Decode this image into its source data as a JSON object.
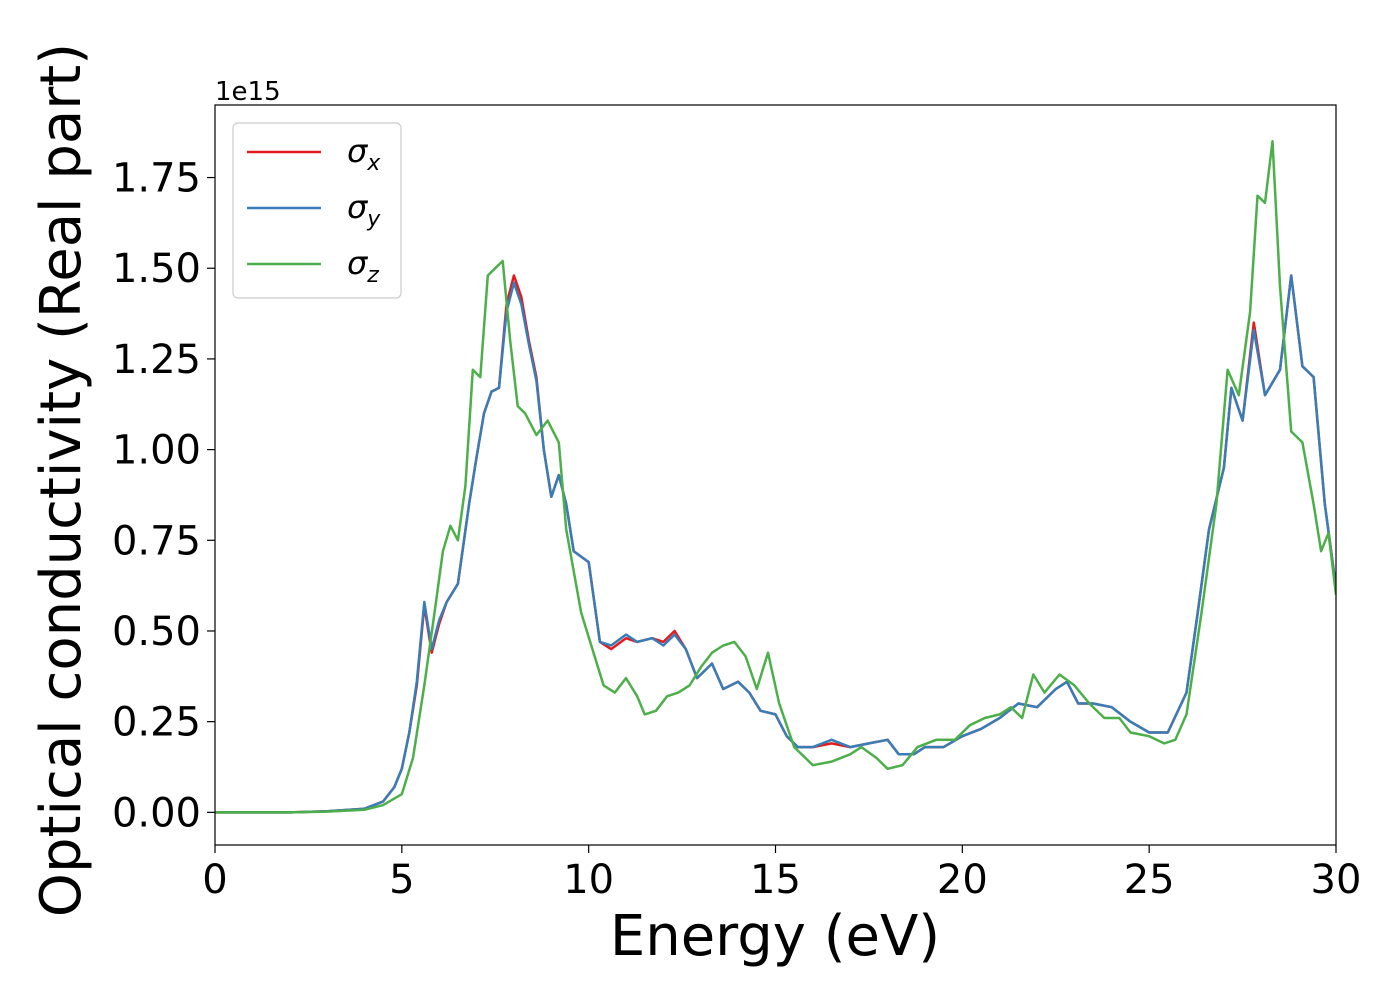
{
  "chart_data": {
    "type": "line",
    "offset_label": "1e15",
    "xlabel": "Energy (eV)",
    "ylabel": "Optical conductivity (Real part)",
    "xlim": [
      0,
      30
    ],
    "ylim": [
      -0.09,
      1.95
    ],
    "x_ticks": [
      "0",
      "5",
      "10",
      "15",
      "20",
      "25",
      "30"
    ],
    "y_ticks": [
      "0.00",
      "0.25",
      "0.50",
      "0.75",
      "1.00",
      "1.25",
      "1.50",
      "1.75"
    ],
    "legend_position": "upper-left",
    "grid": false,
    "series": [
      {
        "name": "σx",
        "legend_symbol": "σ",
        "legend_sub": "x",
        "color": "#e41a1c",
        "points": [
          [
            0,
            0
          ],
          [
            2,
            0
          ],
          [
            3,
            0.003
          ],
          [
            4,
            0.01
          ],
          [
            4.5,
            0.03
          ],
          [
            4.8,
            0.07
          ],
          [
            5,
            0.12
          ],
          [
            5.2,
            0.22
          ],
          [
            5.4,
            0.35
          ],
          [
            5.6,
            0.57
          ],
          [
            5.8,
            0.44
          ],
          [
            6,
            0.52
          ],
          [
            6.2,
            0.58
          ],
          [
            6.5,
            0.63
          ],
          [
            6.8,
            0.85
          ],
          [
            7,
            0.98
          ],
          [
            7.2,
            1.1
          ],
          [
            7.4,
            1.16
          ],
          [
            7.6,
            1.17
          ],
          [
            7.8,
            1.4
          ],
          [
            8,
            1.48
          ],
          [
            8.2,
            1.42
          ],
          [
            8.4,
            1.3
          ],
          [
            8.6,
            1.2
          ],
          [
            8.8,
            1.0
          ],
          [
            9,
            0.87
          ],
          [
            9.2,
            0.93
          ],
          [
            9.4,
            0.85
          ],
          [
            9.6,
            0.72
          ],
          [
            10,
            0.69
          ],
          [
            10.3,
            0.47
          ],
          [
            10.6,
            0.45
          ],
          [
            11,
            0.48
          ],
          [
            11.3,
            0.47
          ],
          [
            11.7,
            0.48
          ],
          [
            12,
            0.47
          ],
          [
            12.3,
            0.5
          ],
          [
            12.6,
            0.45
          ],
          [
            12.9,
            0.37
          ],
          [
            13.3,
            0.41
          ],
          [
            13.6,
            0.34
          ],
          [
            14,
            0.36
          ],
          [
            14.3,
            0.33
          ],
          [
            14.6,
            0.28
          ],
          [
            15,
            0.27
          ],
          [
            15.3,
            0.21
          ],
          [
            15.6,
            0.18
          ],
          [
            16,
            0.18
          ],
          [
            16.5,
            0.19
          ],
          [
            17,
            0.18
          ],
          [
            17.5,
            0.19
          ],
          [
            18,
            0.2
          ],
          [
            18.3,
            0.16
          ],
          [
            18.7,
            0.16
          ],
          [
            19,
            0.18
          ],
          [
            19.5,
            0.18
          ],
          [
            20,
            0.21
          ],
          [
            20.5,
            0.23
          ],
          [
            21,
            0.26
          ],
          [
            21.5,
            0.3
          ],
          [
            22,
            0.29
          ],
          [
            22.5,
            0.34
          ],
          [
            22.8,
            0.36
          ],
          [
            23.1,
            0.3
          ],
          [
            23.5,
            0.3
          ],
          [
            24,
            0.29
          ],
          [
            24.5,
            0.25
          ],
          [
            25,
            0.22
          ],
          [
            25.5,
            0.22
          ],
          [
            26,
            0.33
          ],
          [
            26.3,
            0.55
          ],
          [
            26.6,
            0.78
          ],
          [
            27,
            0.95
          ],
          [
            27.2,
            1.17
          ],
          [
            27.5,
            1.08
          ],
          [
            27.8,
            1.35
          ],
          [
            28.1,
            1.15
          ],
          [
            28.5,
            1.22
          ],
          [
            28.8,
            1.48
          ],
          [
            29.1,
            1.23
          ],
          [
            29.4,
            1.2
          ],
          [
            29.7,
            0.85
          ],
          [
            30,
            0.62
          ]
        ]
      },
      {
        "name": "σy",
        "legend_symbol": "σ",
        "legend_sub": "y",
        "color": "#377eb8",
        "points": [
          [
            0,
            0
          ],
          [
            2,
            0
          ],
          [
            3,
            0.003
          ],
          [
            4,
            0.01
          ],
          [
            4.5,
            0.03
          ],
          [
            4.8,
            0.07
          ],
          [
            5,
            0.12
          ],
          [
            5.2,
            0.22
          ],
          [
            5.4,
            0.36
          ],
          [
            5.6,
            0.58
          ],
          [
            5.8,
            0.45
          ],
          [
            6,
            0.53
          ],
          [
            6.2,
            0.58
          ],
          [
            6.5,
            0.63
          ],
          [
            6.8,
            0.85
          ],
          [
            7,
            0.98
          ],
          [
            7.2,
            1.1
          ],
          [
            7.4,
            1.16
          ],
          [
            7.6,
            1.17
          ],
          [
            7.8,
            1.38
          ],
          [
            8,
            1.46
          ],
          [
            8.2,
            1.4
          ],
          [
            8.4,
            1.29
          ],
          [
            8.6,
            1.19
          ],
          [
            8.8,
            1.0
          ],
          [
            9,
            0.87
          ],
          [
            9.2,
            0.93
          ],
          [
            9.4,
            0.85
          ],
          [
            9.6,
            0.72
          ],
          [
            10,
            0.69
          ],
          [
            10.3,
            0.47
          ],
          [
            10.6,
            0.46
          ],
          [
            11,
            0.49
          ],
          [
            11.3,
            0.47
          ],
          [
            11.7,
            0.48
          ],
          [
            12,
            0.46
          ],
          [
            12.3,
            0.49
          ],
          [
            12.6,
            0.45
          ],
          [
            12.9,
            0.37
          ],
          [
            13.3,
            0.41
          ],
          [
            13.6,
            0.34
          ],
          [
            14,
            0.36
          ],
          [
            14.3,
            0.33
          ],
          [
            14.6,
            0.28
          ],
          [
            15,
            0.27
          ],
          [
            15.3,
            0.21
          ],
          [
            15.6,
            0.18
          ],
          [
            16,
            0.18
          ],
          [
            16.5,
            0.2
          ],
          [
            17,
            0.18
          ],
          [
            17.5,
            0.19
          ],
          [
            18,
            0.2
          ],
          [
            18.3,
            0.16
          ],
          [
            18.7,
            0.16
          ],
          [
            19,
            0.18
          ],
          [
            19.5,
            0.18
          ],
          [
            20,
            0.21
          ],
          [
            20.5,
            0.23
          ],
          [
            21,
            0.26
          ],
          [
            21.5,
            0.3
          ],
          [
            22,
            0.29
          ],
          [
            22.5,
            0.34
          ],
          [
            22.8,
            0.36
          ],
          [
            23.1,
            0.3
          ],
          [
            23.5,
            0.3
          ],
          [
            24,
            0.29
          ],
          [
            24.5,
            0.25
          ],
          [
            25,
            0.22
          ],
          [
            25.5,
            0.22
          ],
          [
            26,
            0.33
          ],
          [
            26.3,
            0.55
          ],
          [
            26.6,
            0.78
          ],
          [
            27,
            0.95
          ],
          [
            27.2,
            1.17
          ],
          [
            27.5,
            1.08
          ],
          [
            27.8,
            1.33
          ],
          [
            28.1,
            1.15
          ],
          [
            28.5,
            1.22
          ],
          [
            28.8,
            1.48
          ],
          [
            29.1,
            1.23
          ],
          [
            29.4,
            1.2
          ],
          [
            29.7,
            0.85
          ],
          [
            30,
            0.62
          ]
        ]
      },
      {
        "name": "σz",
        "legend_symbol": "σ",
        "legend_sub": "z",
        "color": "#4daf4a",
        "points": [
          [
            0,
            0
          ],
          [
            2,
            0
          ],
          [
            3,
            0.002
          ],
          [
            4,
            0.007
          ],
          [
            4.5,
            0.02
          ],
          [
            5,
            0.05
          ],
          [
            5.3,
            0.15
          ],
          [
            5.6,
            0.35
          ],
          [
            5.9,
            0.57
          ],
          [
            6.1,
            0.72
          ],
          [
            6.3,
            0.79
          ],
          [
            6.5,
            0.75
          ],
          [
            6.7,
            0.9
          ],
          [
            6.9,
            1.22
          ],
          [
            7.1,
            1.2
          ],
          [
            7.3,
            1.48
          ],
          [
            7.5,
            1.5
          ],
          [
            7.7,
            1.52
          ],
          [
            7.9,
            1.3
          ],
          [
            8.1,
            1.12
          ],
          [
            8.3,
            1.1
          ],
          [
            8.6,
            1.04
          ],
          [
            8.9,
            1.08
          ],
          [
            9.2,
            1.02
          ],
          [
            9.4,
            0.78
          ],
          [
            9.8,
            0.55
          ],
          [
            10.1,
            0.45
          ],
          [
            10.4,
            0.35
          ],
          [
            10.7,
            0.33
          ],
          [
            11,
            0.37
          ],
          [
            11.3,
            0.32
          ],
          [
            11.5,
            0.27
          ],
          [
            11.8,
            0.28
          ],
          [
            12.1,
            0.32
          ],
          [
            12.4,
            0.33
          ],
          [
            12.7,
            0.35
          ],
          [
            13,
            0.4
          ],
          [
            13.3,
            0.44
          ],
          [
            13.6,
            0.46
          ],
          [
            13.9,
            0.47
          ],
          [
            14.2,
            0.43
          ],
          [
            14.5,
            0.34
          ],
          [
            14.8,
            0.44
          ],
          [
            15.1,
            0.3
          ],
          [
            15.5,
            0.18
          ],
          [
            16,
            0.13
          ],
          [
            16.5,
            0.14
          ],
          [
            17,
            0.16
          ],
          [
            17.3,
            0.18
          ],
          [
            17.7,
            0.15
          ],
          [
            18,
            0.12
          ],
          [
            18.4,
            0.13
          ],
          [
            18.8,
            0.18
          ],
          [
            19.3,
            0.2
          ],
          [
            19.8,
            0.2
          ],
          [
            20.2,
            0.24
          ],
          [
            20.6,
            0.26
          ],
          [
            21,
            0.27
          ],
          [
            21.3,
            0.29
          ],
          [
            21.6,
            0.26
          ],
          [
            21.9,
            0.38
          ],
          [
            22.2,
            0.33
          ],
          [
            22.6,
            0.38
          ],
          [
            23,
            0.35
          ],
          [
            23.4,
            0.3
          ],
          [
            23.8,
            0.26
          ],
          [
            24.2,
            0.26
          ],
          [
            24.5,
            0.22
          ],
          [
            25,
            0.21
          ],
          [
            25.4,
            0.19
          ],
          [
            25.7,
            0.2
          ],
          [
            26,
            0.27
          ],
          [
            26.4,
            0.55
          ],
          [
            26.8,
            0.85
          ],
          [
            27.1,
            1.22
          ],
          [
            27.4,
            1.15
          ],
          [
            27.7,
            1.38
          ],
          [
            27.9,
            1.7
          ],
          [
            28.1,
            1.68
          ],
          [
            28.3,
            1.85
          ],
          [
            28.5,
            1.45
          ],
          [
            28.8,
            1.05
          ],
          [
            29.1,
            1.02
          ],
          [
            29.4,
            0.85
          ],
          [
            29.6,
            0.72
          ],
          [
            29.8,
            0.77
          ],
          [
            30,
            0.6
          ]
        ]
      }
    ]
  }
}
